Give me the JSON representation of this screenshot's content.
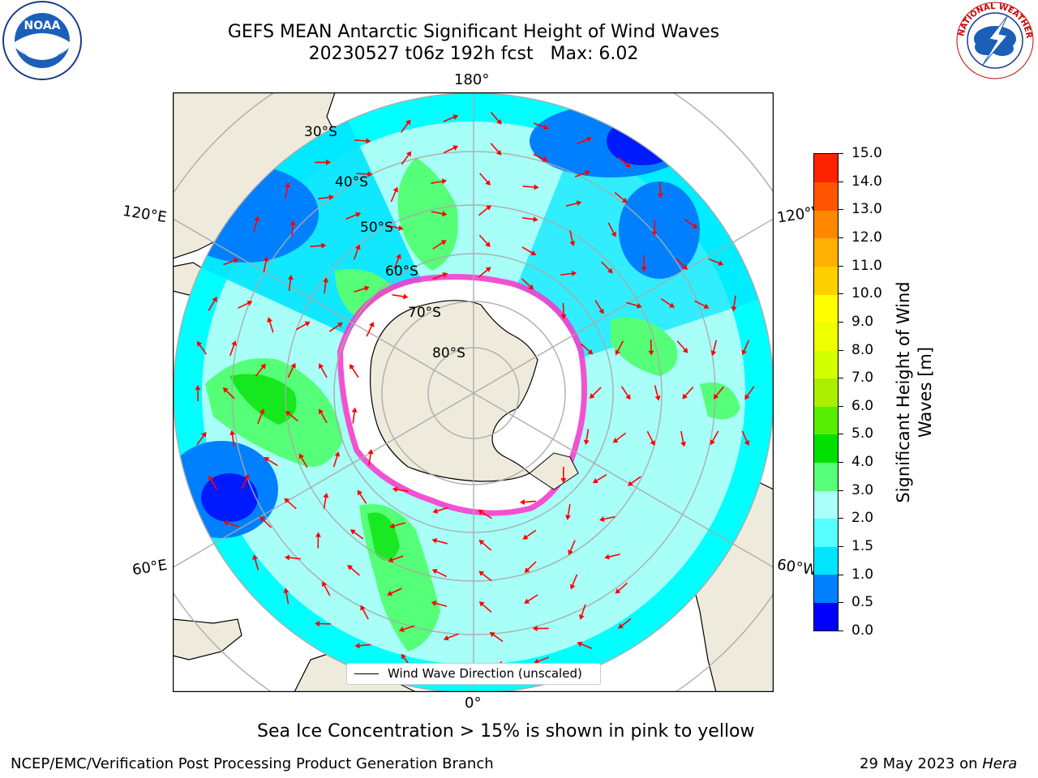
{
  "header": {
    "title": "GEFS MEAN Antarctic Significant Height of Wind Waves",
    "subtitle": "20230527 t06z 192h fcst   Max: 6.02"
  },
  "logos": {
    "noaa_text": "NOAA",
    "nws_text": "NATIONAL WEATHER SERVICE"
  },
  "map": {
    "projection": "south-polar-stereographic",
    "longitude_labels": {
      "top": "180°",
      "bottom": "0°",
      "upper_left": "120°E",
      "upper_right": "120°W",
      "lower_left": "60°E",
      "lower_right": "60°W"
    },
    "latitude_labels": [
      "30°S",
      "40°S",
      "50°S",
      "60°S",
      "70°S",
      "80°S"
    ],
    "legend_label": "Wind Wave Direction (unscaled)",
    "colors": {
      "land": "#efebdc",
      "ocean_low": "#00ffff",
      "ocean_mid": "#a8fff8",
      "ocean_high": "#44f070",
      "arrow": "#ff0000",
      "sea_ice": "#ff33cc"
    }
  },
  "colorbar": {
    "label": "Significant Height of Wind Waves [m]",
    "ticks": [
      "0.0",
      "0.5",
      "1.0",
      "1.5",
      "2.0",
      "3.0",
      "4.0",
      "5.0",
      "6.0",
      "7.0",
      "8.0",
      "9.0",
      "10.0",
      "11.0",
      "12.0",
      "13.0",
      "14.0",
      "15.0"
    ],
    "colors": [
      "#0000ff",
      "#0080ff",
      "#00e5ff",
      "#55ffff",
      "#aafff8",
      "#55ff77",
      "#00e000",
      "#55ee00",
      "#aaee00",
      "#d4ff00",
      "#eeff00",
      "#ffff00",
      "#ffd000",
      "#ffb000",
      "#ff8800",
      "#ff5500",
      "#ff2200"
    ]
  },
  "footer": {
    "note": "Sea Ice Concentration > 15% is shown in pink to yellow",
    "left": "NCEP/EMC/Verification Post Processing Product Generation Branch",
    "right_date": "29 May 2023 on ",
    "right_machine": "Hera"
  }
}
